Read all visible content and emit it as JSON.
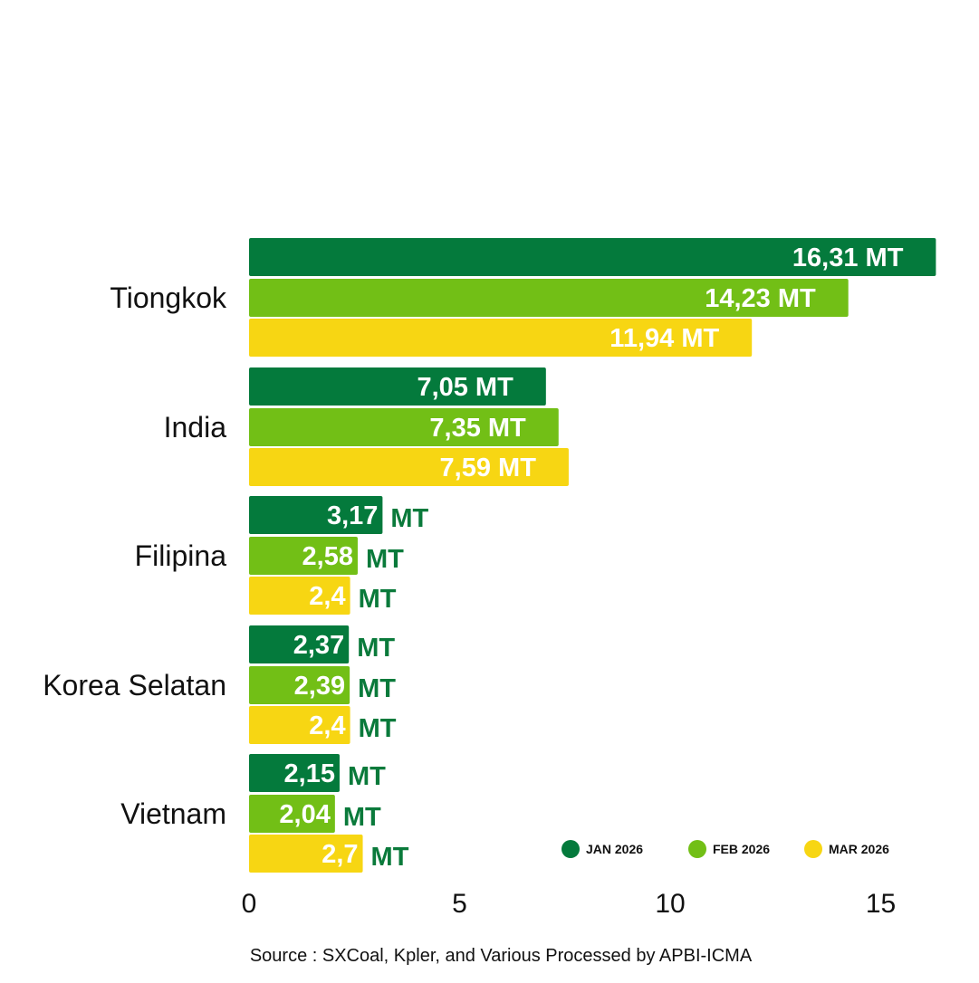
{
  "colors": {
    "jan": "#047a3c",
    "feb": "#72bf16",
    "mar": "#f7d613",
    "in_label": "#ffffff",
    "out_label": "#0a7a3b"
  },
  "chart_data": {
    "type": "bar",
    "orientation": "horizontal",
    "categories": [
      "Tiongkok",
      "India",
      "Filipina",
      "Korea Selatan",
      "Vietnam"
    ],
    "series": [
      {
        "name": "JAN 2026",
        "color_key": "jan",
        "values": [
          16.31,
          7.05,
          3.17,
          2.37,
          2.15
        ],
        "value_labels": [
          "16,31",
          "7,05",
          "3,17",
          "2,37",
          "2,15"
        ]
      },
      {
        "name": "FEB 2026",
        "color_key": "feb",
        "values": [
          14.23,
          7.35,
          2.58,
          2.39,
          2.04
        ],
        "value_labels": [
          "14,23",
          "7,35",
          "2,58",
          "2,39",
          "2,04"
        ]
      },
      {
        "name": "MAR 2026",
        "color_key": "mar",
        "values": [
          11.94,
          7.59,
          2.4,
          2.4,
          2.7
        ],
        "value_labels": [
          "11,94",
          "7,59",
          "2,4",
          "2,4",
          "2,7"
        ]
      }
    ],
    "unit": "MT",
    "x_ticks": [
      0,
      5,
      10,
      15
    ],
    "xlim": [
      0,
      16.5
    ],
    "legend_position": "bottom-right",
    "source": "Source : SXCoal, Kpler, and Various Processed by APBI-ICMA"
  }
}
